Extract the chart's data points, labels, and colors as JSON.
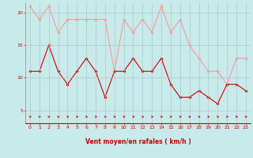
{
  "x": [
    0,
    1,
    2,
    3,
    4,
    5,
    6,
    7,
    8,
    9,
    10,
    11,
    12,
    13,
    14,
    15,
    16,
    17,
    18,
    19,
    20,
    21,
    22,
    23
  ],
  "y_mean": [
    11,
    11,
    15,
    11,
    9,
    11,
    13,
    11,
    7,
    11,
    11,
    13,
    11,
    11,
    13,
    9,
    7,
    7,
    8,
    7,
    6,
    9,
    9,
    8
  ],
  "y_gust": [
    21,
    19,
    21,
    17,
    19,
    19,
    19,
    19,
    19,
    11,
    19,
    17,
    19,
    17,
    21,
    17,
    19,
    15,
    13,
    11,
    11,
    9,
    13,
    13
  ],
  "bg_color": "#c8eaea",
  "grid_color": "#b0c8c8",
  "line_mean_color": "#cc0000",
  "line_gust_color": "#ff9999",
  "xlabel": "Vent moyen/en rafales ( km/h )",
  "xlabel_color": "#cc0000",
  "tick_color": "#cc0000",
  "arrow_color": "#cc0000",
  "ylim": [
    3,
    21.5
  ],
  "yticks": [
    5,
    10,
    15,
    20
  ],
  "xticks": [
    0,
    1,
    2,
    3,
    4,
    5,
    6,
    7,
    8,
    9,
    10,
    11,
    12,
    13,
    14,
    15,
    16,
    17,
    18,
    19,
    20,
    21,
    22,
    23
  ]
}
